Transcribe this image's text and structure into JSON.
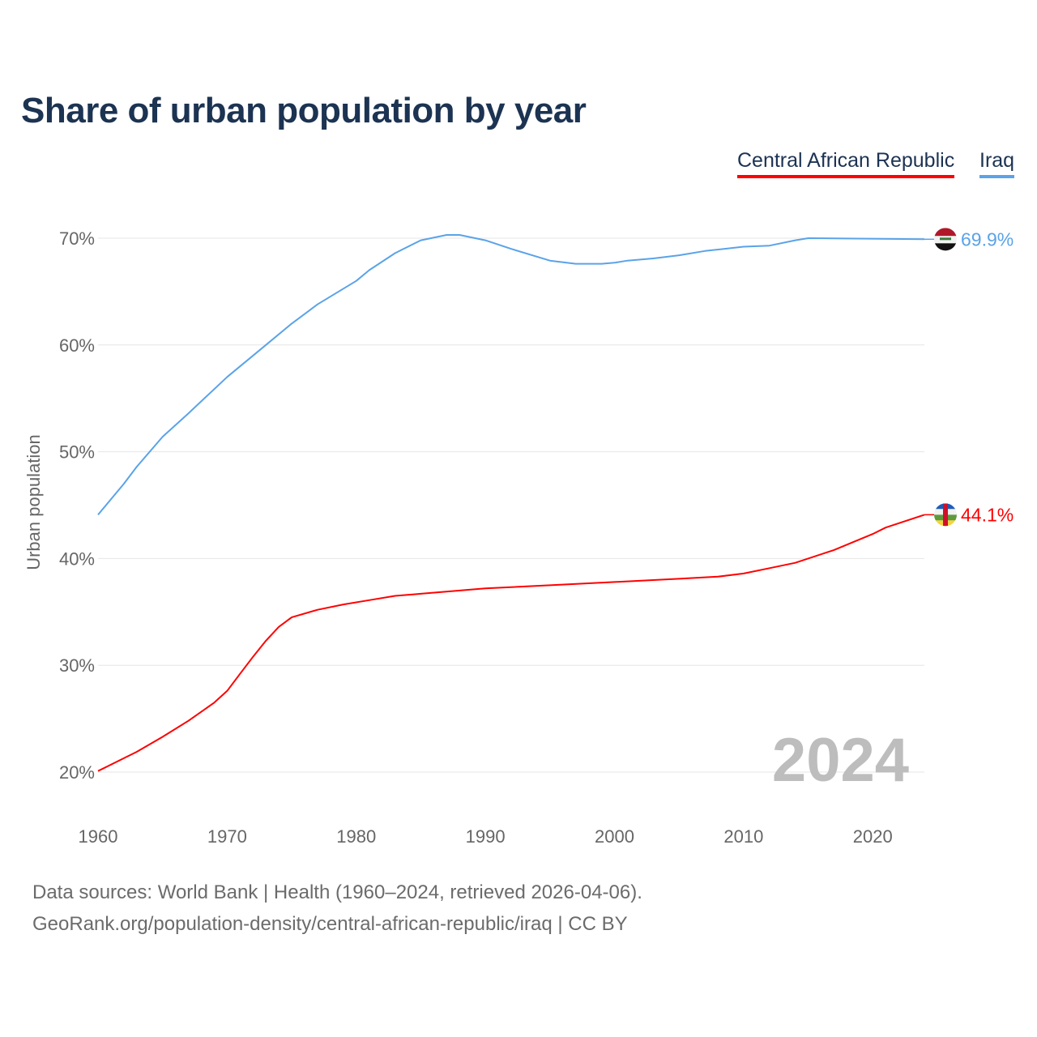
{
  "title": "Share of urban population by year",
  "legend": [
    {
      "label": "Central African Republic",
      "color": "#ff0000"
    },
    {
      "label": "Iraq",
      "color": "#5aa3e8"
    }
  ],
  "year_watermark": "2024",
  "footer": {
    "line1": "Data sources: World Bank | Health (1960–2024, retrieved 2026-04-06).",
    "line2": "GeoRank.org/population-density/central-african-republic/iraq | CC BY"
  },
  "chart_data": {
    "type": "line",
    "title": "Share of urban population by year",
    "xlabel": "",
    "ylabel": "Urban population",
    "xlim": [
      1960,
      2024
    ],
    "ylim": [
      20,
      70
    ],
    "x_ticks": [
      "1960",
      "1970",
      "1980",
      "1990",
      "2000",
      "2010",
      "2020"
    ],
    "y_ticks": [
      "20%",
      "30%",
      "40%",
      "50%",
      "60%",
      "70%"
    ],
    "grid": true,
    "legend_position": "top-right",
    "series": [
      {
        "name": "Iraq",
        "color": "#5aa3e8",
        "end_label": "69.9%",
        "flag": "iraq-flag",
        "x": [
          1960,
          1962,
          1963,
          1965,
          1967,
          1970,
          1973,
          1975,
          1977,
          1980,
          1981,
          1983,
          1985,
          1987,
          1988,
          1990,
          1992,
          1995,
          1997,
          1999,
          2000,
          2001,
          2003,
          2005,
          2007,
          2010,
          2012,
          2014,
          2015,
          2024
        ],
        "y": [
          44.1,
          47.0,
          48.6,
          51.4,
          53.6,
          57.0,
          60.0,
          62.0,
          63.8,
          66.0,
          67.0,
          68.6,
          69.8,
          70.3,
          70.3,
          69.8,
          69.0,
          67.9,
          67.6,
          67.6,
          67.7,
          67.9,
          68.1,
          68.4,
          68.8,
          69.2,
          69.3,
          69.8,
          70.0,
          69.9
        ]
      },
      {
        "name": "Central African Republic",
        "color": "#ff0000",
        "end_label": "44.1%",
        "flag": "car-flag",
        "x": [
          1960,
          1962,
          1963,
          1965,
          1967,
          1969,
          1970,
          1971,
          1972,
          1973,
          1974,
          1975,
          1977,
          1979,
          1981,
          1983,
          1985,
          1990,
          1995,
          2000,
          2005,
          2008,
          2010,
          2012,
          2014,
          2017,
          2020,
          2021,
          2024
        ],
        "y": [
          20.1,
          21.3,
          21.9,
          23.3,
          24.8,
          26.5,
          27.6,
          29.2,
          30.8,
          32.3,
          33.6,
          34.5,
          35.2,
          35.7,
          36.1,
          36.5,
          36.7,
          37.2,
          37.5,
          37.8,
          38.1,
          38.3,
          38.6,
          39.1,
          39.6,
          40.8,
          42.3,
          42.9,
          44.1
        ]
      }
    ]
  }
}
